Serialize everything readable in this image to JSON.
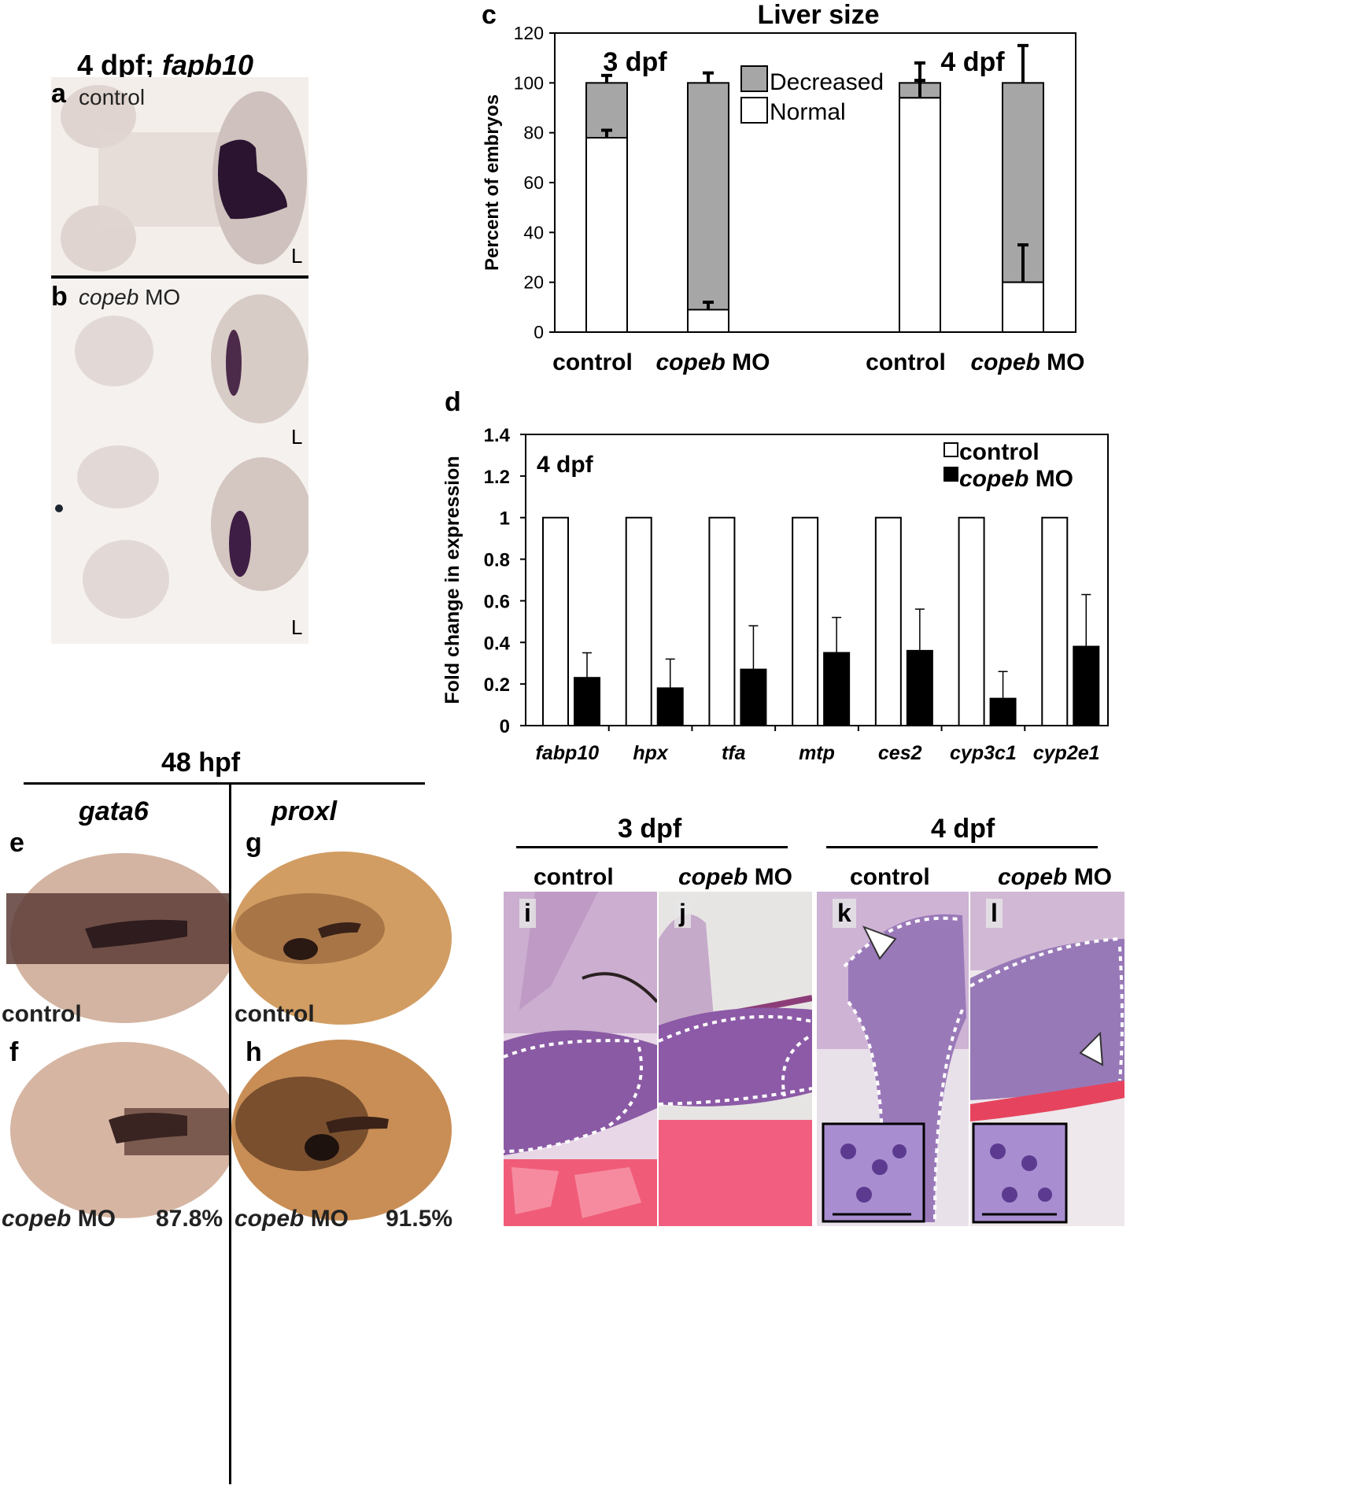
{
  "panel_letters": {
    "a": "a",
    "b": "b",
    "c": "c",
    "d": "d",
    "e": "e",
    "f": "f",
    "g": "g",
    "h": "h",
    "i": "i",
    "j": "j",
    "k": "k",
    "l": "l"
  },
  "panel_ab": {
    "title_prefix": "4 dpf; ",
    "title_gene": "fapb10",
    "a_label": "control",
    "b_gene": "copeb",
    "b_rest": " MO",
    "L": "L"
  },
  "panel_efgh": {
    "title": "48 hpf",
    "gene_left": "gata6",
    "gene_right": "proxl",
    "control": "control",
    "mo_gene": "copeb",
    "mo_rest": " MO",
    "pct_f": "87.8%",
    "pct_h": "91.5%"
  },
  "panel_ijkl": {
    "title_3": "3 dpf",
    "title_4": "4 dpf",
    "control": "control",
    "mo_gene": "copeb",
    "mo_rest": " MO"
  },
  "colors": {
    "decreased": "#a6a6a6",
    "normal": "#ffffff",
    "control": "#ffffff",
    "mo": "#000000"
  },
  "chart_data": [
    {
      "panel": "c",
      "type": "bar",
      "stacked": true,
      "title": "Liver size",
      "ylabel": "Percent of embryos",
      "ylim": [
        0,
        120
      ],
      "yticks": [
        0,
        20,
        40,
        60,
        80,
        100,
        120
      ],
      "groups": [
        "3 dpf",
        "4 dpf"
      ],
      "categories": [
        "control",
        "copeb MO",
        "control",
        "copeb MO"
      ],
      "category_labels": [
        {
          "gene": "",
          "rest": "control"
        },
        {
          "gene": "copeb",
          "rest": " MO"
        },
        {
          "gene": "",
          "rest": "control"
        },
        {
          "gene": "copeb",
          "rest": " MO"
        }
      ],
      "series": [
        {
          "name": "Normal",
          "values": [
            78,
            9,
            94,
            20
          ],
          "error": [
            3,
            3,
            7,
            15
          ]
        },
        {
          "name": "Decreased",
          "values": [
            22,
            91,
            6,
            80
          ],
          "error": [
            3,
            4,
            8,
            15
          ]
        }
      ],
      "legend": [
        "Decreased",
        "Normal"
      ],
      "legend_position": "top-center"
    },
    {
      "panel": "d",
      "type": "bar",
      "annotation": "4 dpf",
      "ylabel": "Fold change in expression",
      "ylim": [
        0,
        1.4
      ],
      "yticks": [
        "0",
        "0.2",
        "0.4",
        "0.6",
        "0.8",
        "1",
        "1.2",
        "1.4"
      ],
      "categories": [
        "fabp10",
        "hpx",
        "tfa",
        "mtp",
        "ces2",
        "cyp3c1",
        "cyp2e1"
      ],
      "series": [
        {
          "name": "control",
          "values": [
            1,
            1,
            1,
            1,
            1,
            1,
            1
          ],
          "error": [
            0,
            0,
            0,
            0,
            0,
            0,
            0
          ]
        },
        {
          "name": "copeb MO",
          "values": [
            0.23,
            0.18,
            0.27,
            0.35,
            0.36,
            0.13,
            0.38
          ],
          "error": [
            0.12,
            0.14,
            0.21,
            0.17,
            0.2,
            0.13,
            0.25
          ]
        }
      ],
      "legend": [
        {
          "gene": "",
          "rest": "control"
        },
        {
          "gene": "copeb",
          "rest": " MO"
        }
      ],
      "legend_position": "top-right"
    }
  ]
}
